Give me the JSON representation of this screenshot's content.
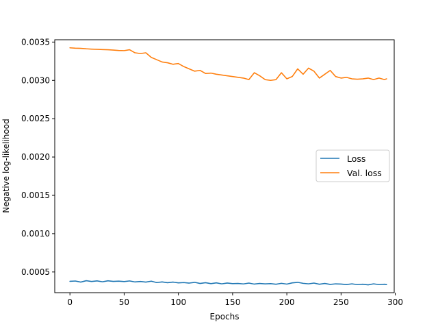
{
  "chart_data": {
    "type": "line",
    "title": "",
    "xlabel": "Epochs",
    "ylabel": "Negative log-likelihood",
    "xlim": [
      -14,
      299
    ],
    "ylim": [
      0.00023,
      0.00353
    ],
    "xticks": [
      0,
      50,
      100,
      150,
      200,
      250,
      300
    ],
    "xtick_labels": [
      "0",
      "50",
      "100",
      "150",
      "200",
      "250",
      "300"
    ],
    "yticks": [
      0.0005,
      0.001,
      0.0015,
      0.002,
      0.0025,
      0.003,
      0.0035
    ],
    "ytick_labels": [
      "0.0005",
      "0.0010",
      "0.0015",
      "0.0020",
      "0.0025",
      "0.0030",
      "0.0035"
    ],
    "grid": false,
    "legend_position": "center-right",
    "series": [
      {
        "name": "Loss",
        "color": "#1f77b4",
        "x": [
          0,
          5,
          10,
          15,
          20,
          25,
          30,
          35,
          40,
          45,
          50,
          55,
          60,
          65,
          70,
          75,
          80,
          85,
          90,
          95,
          100,
          105,
          110,
          115,
          120,
          125,
          130,
          135,
          140,
          145,
          150,
          155,
          160,
          165,
          170,
          175,
          180,
          185,
          190,
          195,
          200,
          205,
          210,
          215,
          220,
          225,
          230,
          235,
          240,
          245,
          250,
          255,
          260,
          265,
          270,
          275,
          280,
          285,
          290,
          292
        ],
        "values": [
          0.000378,
          0.000382,
          0.000368,
          0.000386,
          0.000376,
          0.000384,
          0.000372,
          0.000385,
          0.000377,
          0.00038,
          0.000375,
          0.000383,
          0.00037,
          0.000376,
          0.000368,
          0.00038,
          0.000362,
          0.00037,
          0.00036,
          0.000368,
          0.000358,
          0.000362,
          0.000355,
          0.000365,
          0.00035,
          0.00036,
          0.000348,
          0.000358,
          0.000345,
          0.000356,
          0.000348,
          0.00035,
          0.000344,
          0.000355,
          0.000342,
          0.00035,
          0.000345,
          0.000348,
          0.00034,
          0.000352,
          0.000342,
          0.000358,
          0.000365,
          0.000352,
          0.000345,
          0.000355,
          0.00034,
          0.00035,
          0.000338,
          0.000345,
          0.000342,
          0.000336,
          0.000345,
          0.000335,
          0.00034,
          0.000332,
          0.000345,
          0.000335,
          0.00034,
          0.000336
        ]
      },
      {
        "name": "Val. loss",
        "color": "#ff7f0e",
        "x": [
          0,
          5,
          10,
          15,
          20,
          25,
          30,
          35,
          40,
          45,
          50,
          55,
          60,
          65,
          70,
          75,
          80,
          85,
          90,
          95,
          100,
          105,
          110,
          115,
          120,
          125,
          130,
          135,
          140,
          145,
          150,
          155,
          160,
          165,
          170,
          175,
          180,
          185,
          190,
          195,
          200,
          205,
          210,
          215,
          220,
          225,
          230,
          235,
          240,
          245,
          250,
          255,
          260,
          265,
          270,
          275,
          280,
          285,
          290,
          292
        ],
        "values": [
          0.003425,
          0.00342,
          0.003418,
          0.003412,
          0.003408,
          0.003405,
          0.003402,
          0.0034,
          0.003395,
          0.00339,
          0.003388,
          0.0034,
          0.00336,
          0.00335,
          0.00336,
          0.0033,
          0.00327,
          0.00324,
          0.00323,
          0.00321,
          0.00322,
          0.00318,
          0.00315,
          0.00312,
          0.00313,
          0.00309,
          0.003095,
          0.00308,
          0.00307,
          0.00306,
          0.00305,
          0.00304,
          0.00303,
          0.00301,
          0.0031,
          0.00306,
          0.00301,
          0.003,
          0.00301,
          0.0031,
          0.00302,
          0.00305,
          0.00315,
          0.00308,
          0.00316,
          0.00312,
          0.00303,
          0.00308,
          0.00313,
          0.00305,
          0.00303,
          0.00304,
          0.00302,
          0.003015,
          0.00302,
          0.00303,
          0.00301,
          0.00303,
          0.00301,
          0.00302
        ]
      }
    ]
  }
}
